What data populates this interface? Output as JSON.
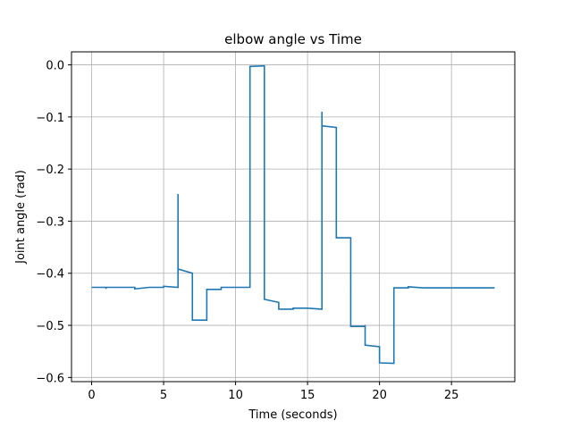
{
  "chart_data": {
    "type": "line",
    "title": "elbow angle vs Time",
    "xlabel": "Time (seconds)",
    "ylabel": "Joint angle (rad)",
    "xlim": [
      -1.4,
      29.4
    ],
    "ylim": [
      -0.608,
      0.025
    ],
    "xticks": [
      0,
      5,
      10,
      15,
      20,
      25
    ],
    "xtick_labels": [
      "0",
      "5",
      "10",
      "15",
      "20",
      "25"
    ],
    "yticks": [
      0.0,
      -0.1,
      -0.2,
      -0.3,
      -0.4,
      -0.5,
      -0.6
    ],
    "ytick_labels": [
      "0.0",
      "−0.1",
      "−0.2",
      "−0.3",
      "−0.4",
      "−0.5",
      "−0.6"
    ],
    "grid": true,
    "color": "#1f77b4",
    "series": [
      {
        "x": [
          0,
          1,
          1,
          1,
          2,
          3,
          3,
          4,
          5,
          5,
          6,
          6,
          6,
          6.02,
          7,
          7,
          8,
          8,
          9,
          9,
          10,
          11,
          11,
          11,
          12,
          12,
          13,
          13,
          14,
          14,
          15,
          16,
          16,
          16,
          16.02,
          17,
          17,
          18,
          18,
          19,
          19,
          19,
          20,
          20,
          21,
          21,
          22,
          22,
          23,
          24,
          25,
          26,
          27,
          28
        ],
        "y": [
          -0.427,
          -0.427,
          -0.43,
          -0.427,
          -0.427,
          -0.427,
          -0.43,
          -0.427,
          -0.427,
          -0.425,
          -0.427,
          -0.248,
          -0.392,
          -0.392,
          -0.4,
          -0.49,
          -0.49,
          -0.431,
          -0.431,
          -0.427,
          -0.427,
          -0.427,
          -0.003,
          -0.003,
          -0.002,
          -0.45,
          -0.456,
          -0.469,
          -0.469,
          -0.467,
          -0.467,
          -0.469,
          -0.09,
          -0.117,
          -0.117,
          -0.12,
          -0.332,
          -0.332,
          -0.502,
          -0.502,
          -0.499,
          -0.538,
          -0.541,
          -0.572,
          -0.573,
          -0.428,
          -0.428,
          -0.426,
          -0.428,
          -0.428,
          -0.428,
          -0.428,
          -0.428,
          -0.428
        ]
      }
    ]
  }
}
